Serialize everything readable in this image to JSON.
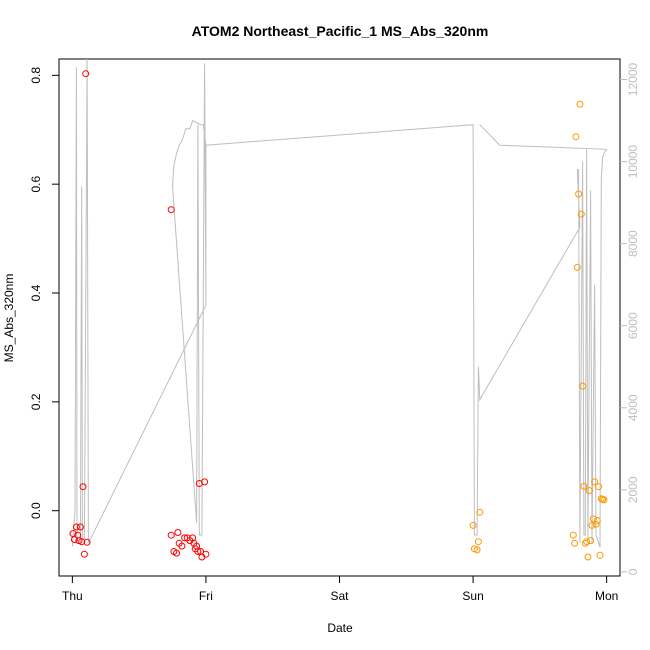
{
  "chart_data": {
    "type": "scatter",
    "title": "ATOM2 Northeast_Pacific_1 MS_Abs_320nm",
    "xlabel": "Date",
    "ylabel": "MS_Abs_320nm",
    "x_tick_labels": [
      "Thu",
      "Fri",
      "Sat",
      "Sun",
      "Mon"
    ],
    "y_ticks": [
      "0.0",
      "0.2",
      "0.4",
      "0.6",
      "0.8"
    ],
    "y_tick_values": [
      0.0,
      0.2,
      0.4,
      0.6,
      0.8
    ],
    "ylim": [
      -0.12,
      0.83
    ],
    "right_axis": {
      "ticks": [
        "0",
        "2000",
        "4000",
        "6000",
        "8000",
        "10000",
        "12000"
      ],
      "tick_values": [
        0,
        2000,
        4000,
        6000,
        8000,
        10000,
        12000
      ],
      "range": [
        -100,
        12500
      ],
      "color": "#bebebe"
    },
    "xlim": [
      -0.1,
      4.1
    ],
    "grid": false,
    "colors": {
      "red": "#ff0000",
      "orange": "#ff9900",
      "grey_line": "#bebebe"
    },
    "series": [
      {
        "color": "red",
        "points": [
          [
            0.005,
            -0.042
          ],
          [
            0.015,
            -0.053
          ],
          [
            0.03,
            -0.03
          ],
          [
            0.04,
            -0.045
          ],
          [
            0.05,
            -0.055
          ],
          [
            0.06,
            -0.03
          ],
          [
            0.07,
            -0.057
          ],
          [
            0.08,
            0.044
          ],
          [
            0.09,
            -0.08
          ],
          [
            0.11,
            -0.058
          ],
          [
            0.1,
            0.803
          ],
          [
            0.74,
            -0.045
          ],
          [
            0.76,
            -0.075
          ],
          [
            0.78,
            -0.078
          ],
          [
            0.79,
            -0.04
          ],
          [
            0.8,
            -0.06
          ],
          [
            0.82,
            -0.065
          ],
          [
            0.84,
            -0.05
          ],
          [
            0.86,
            -0.05
          ],
          [
            0.88,
            -0.055
          ],
          [
            0.9,
            -0.05
          ],
          [
            0.91,
            -0.06
          ],
          [
            0.92,
            -0.07
          ],
          [
            0.93,
            -0.065
          ],
          [
            0.94,
            -0.075
          ],
          [
            0.95,
            0.05
          ],
          [
            0.96,
            -0.075
          ],
          [
            0.97,
            -0.085
          ],
          [
            0.99,
            0.053
          ],
          [
            1.0,
            -0.08
          ],
          [
            0.74,
            0.553
          ]
        ]
      },
      {
        "color": "orange",
        "points": [
          [
            3.0,
            -0.027
          ],
          [
            3.01,
            -0.07
          ],
          [
            3.03,
            -0.072
          ],
          [
            3.04,
            -0.057
          ],
          [
            3.05,
            -0.003
          ],
          [
            3.75,
            -0.045
          ],
          [
            3.76,
            -0.06
          ],
          [
            3.77,
            0.687
          ],
          [
            3.78,
            0.447
          ],
          [
            3.79,
            0.582
          ],
          [
            3.8,
            0.747
          ],
          [
            3.81,
            0.545
          ],
          [
            3.82,
            0.229
          ],
          [
            3.83,
            0.045
          ],
          [
            3.84,
            -0.06
          ],
          [
            3.85,
            -0.057
          ],
          [
            3.86,
            -0.085
          ],
          [
            3.87,
            0.037
          ],
          [
            3.88,
            -0.055
          ],
          [
            3.89,
            -0.027
          ],
          [
            3.9,
            -0.015
          ],
          [
            3.91,
            0.053
          ],
          [
            3.92,
            -0.025
          ],
          [
            3.93,
            -0.018
          ],
          [
            3.94,
            0.044
          ],
          [
            3.95,
            -0.082
          ],
          [
            3.96,
            0.022
          ],
          [
            3.97,
            0.021
          ],
          [
            3.98,
            0.02
          ]
        ]
      }
    ],
    "secondary_line": {
      "color": "grey_line",
      "points": [
        [
          0.0,
          620
        ],
        [
          0.02,
          1500
        ],
        [
          0.03,
          12300
        ],
        [
          0.035,
          700
        ],
        [
          0.06,
          700
        ],
        [
          0.07,
          9400
        ],
        [
          0.075,
          800
        ],
        [
          0.09,
          800
        ],
        [
          0.11,
          12500
        ],
        [
          0.12,
          700
        ],
        [
          1.0,
          6500
        ],
        [
          1.0,
          10400
        ],
        [
          0.98,
          10900
        ],
        [
          0.96,
          10900
        ],
        [
          0.9,
          11000
        ],
        [
          0.88,
          10800
        ],
        [
          0.85,
          10800
        ],
        [
          0.83,
          10600
        ],
        [
          0.82,
          10500
        ],
        [
          0.8,
          10400
        ],
        [
          0.78,
          10200
        ],
        [
          0.76,
          9900
        ],
        [
          0.75,
          9400
        ],
        [
          0.93,
          1200
        ],
        [
          0.94,
          10900
        ],
        [
          0.95,
          900
        ],
        [
          0.96,
          900
        ],
        [
          0.97,
          900
        ],
        [
          0.99,
          12400
        ],
        [
          1.0,
          6500
        ],
        [
          1.0,
          10400
        ],
        [
          3.0,
          10900
        ],
        [
          3.01,
          900
        ],
        [
          3.03,
          900
        ],
        [
          3.04,
          5000
        ],
        [
          3.05,
          4200
        ],
        [
          3.8,
          8400
        ],
        [
          3.78,
          9800
        ],
        [
          3.79,
          9800
        ],
        [
          3.8,
          700
        ],
        [
          3.82,
          10000
        ],
        [
          3.83,
          900
        ],
        [
          3.84,
          900
        ],
        [
          3.85,
          10300
        ],
        [
          3.86,
          800
        ],
        [
          3.88,
          9300
        ],
        [
          3.89,
          700
        ],
        [
          3.91,
          7000
        ],
        [
          3.92,
          900
        ],
        [
          3.95,
          600
        ],
        [
          3.96,
          9600
        ],
        [
          3.97,
          10100
        ],
        [
          3.98,
          10200
        ],
        [
          4.0,
          10300
        ],
        [
          3.2,
          10400
        ],
        [
          3.05,
          10900
        ]
      ]
    }
  }
}
